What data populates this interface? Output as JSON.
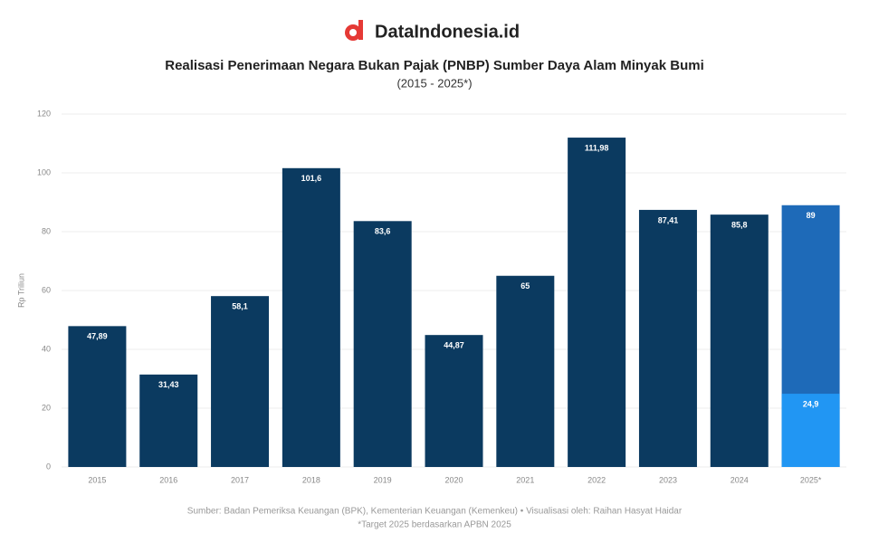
{
  "brand": "DataIndonesia.id",
  "chart_data": {
    "type": "bar",
    "title": "Realisasi Penerimaan Negara Bukan Pajak (PNBP) Sumber Daya Alam Minyak Bumi",
    "subtitle": "(2015 - 2025*)",
    "y_label": "Rp Triliun",
    "categories": [
      "2015",
      "2016",
      "2017",
      "2018",
      "2019",
      "2020",
      "2021",
      "2022",
      "2023",
      "2024",
      "2025*"
    ],
    "series": [
      {
        "color": "#0b3a60",
        "values": [
          47.89,
          31.43,
          58.1,
          101.6,
          83.6,
          44.87,
          65,
          111.98,
          87.41,
          85.8,
          null
        ],
        "value_labels": [
          "47,89",
          "31,43",
          "58,1",
          "101,6",
          "83,6",
          "44,87",
          "65",
          "111,98",
          "87,41",
          "85,8",
          null
        ]
      },
      {
        "color": "#1e6ab8",
        "values": [
          null,
          null,
          null,
          null,
          null,
          null,
          null,
          null,
          null,
          null,
          89
        ],
        "value_labels": [
          null,
          null,
          null,
          null,
          null,
          null,
          null,
          null,
          null,
          null,
          "89"
        ]
      },
      {
        "color": "#2196f3",
        "values": [
          null,
          null,
          null,
          null,
          null,
          null,
          null,
          null,
          null,
          null,
          24.9
        ],
        "value_labels": [
          null,
          null,
          null,
          null,
          null,
          null,
          null,
          null,
          null,
          null,
          "24,9"
        ]
      }
    ],
    "ylim": [
      0,
      120
    ],
    "yticks": [
      0,
      20,
      40,
      60,
      80,
      100,
      120
    ],
    "grid": true,
    "source": "Sumber: Badan Pemeriksa Keuangan (BPK), Kementerian Keuangan (Kemenkeu) • Visualisasi oleh: Raihan Hasyat Haidar",
    "note": "*Target 2025 berdasarkan APBN 2025"
  }
}
